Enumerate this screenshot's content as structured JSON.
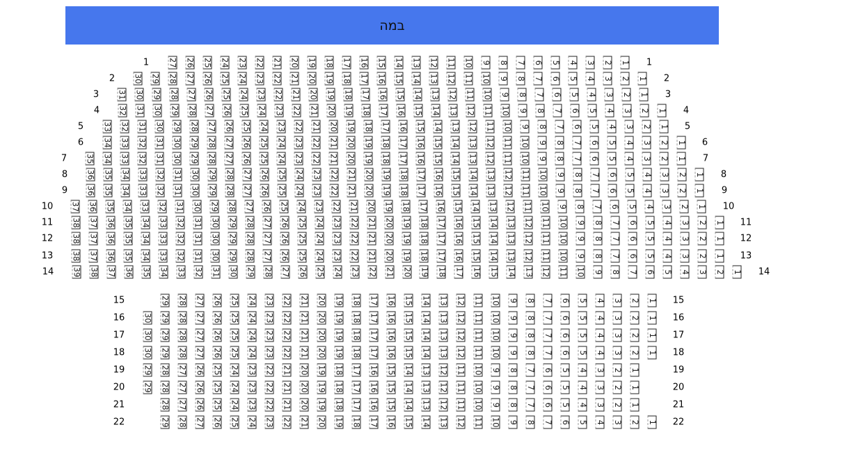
{
  "stage": {
    "label": "במה",
    "color": "#4677ED"
  },
  "rows": [
    {
      "label": "1",
      "seat_count": 27
    },
    {
      "label": "2",
      "seat_count": 30
    },
    {
      "label": "3",
      "seat_count": 31
    },
    {
      "label": "4",
      "seat_count": 32
    },
    {
      "label": "5",
      "seat_count": 33
    },
    {
      "label": "6",
      "seat_count": 34
    },
    {
      "label": "7",
      "seat_count": 35
    },
    {
      "label": "8",
      "seat_count": 36
    },
    {
      "label": "9",
      "seat_count": 36
    },
    {
      "label": "10",
      "seat_count": 37
    },
    {
      "label": "11",
      "seat_count": 38
    },
    {
      "label": "12",
      "seat_count": 38
    },
    {
      "label": "13",
      "seat_count": 38
    },
    {
      "label": "14",
      "seat_count": 39
    },
    {
      "label": "15",
      "seat_count": 29
    },
    {
      "label": "16",
      "seat_count": 30
    },
    {
      "label": "17",
      "seat_count": 30
    },
    {
      "label": "18",
      "seat_count": 30
    },
    {
      "label": "19",
      "seat_count": 29
    },
    {
      "label": "20",
      "seat_count": 29
    },
    {
      "label": "21",
      "seat_count": 28
    },
    {
      "label": "22",
      "seat_count": 29
    }
  ]
}
